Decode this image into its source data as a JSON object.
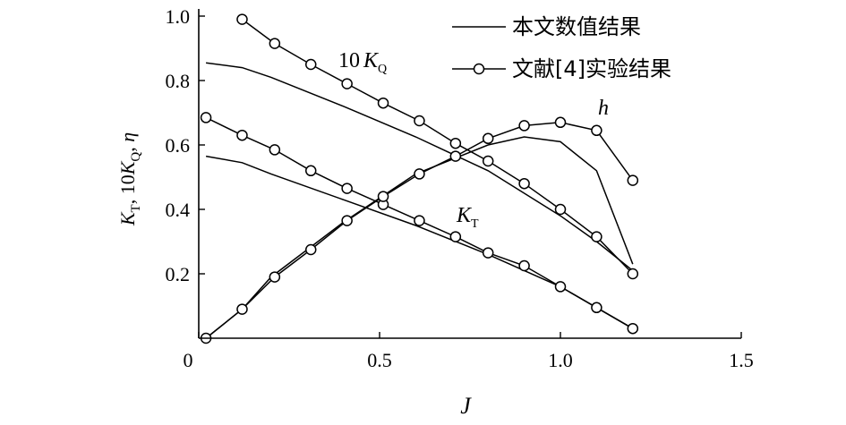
{
  "chart_data": {
    "type": "line",
    "xlabel": "J",
    "ylabel": "K_T, 10K_Q, η",
    "xlim": [
      0,
      1.5
    ],
    "ylim": [
      0,
      1.0
    ],
    "x_ticks": [
      {
        "value": 0,
        "label": "0"
      },
      {
        "value": 0.5,
        "label": "0.5"
      },
      {
        "value": 1.0,
        "label": "1.0"
      },
      {
        "value": 1.5,
        "label": "1.5"
      }
    ],
    "y_ticks": [
      {
        "value": 0.2,
        "label": "0.2"
      },
      {
        "value": 0.4,
        "label": "0.4"
      },
      {
        "value": 0.6,
        "label": "0.6"
      },
      {
        "value": 0.8,
        "label": "0.8"
      },
      {
        "value": 1.0,
        "label": "1.0"
      }
    ],
    "grid": false,
    "legend_position": "top-right",
    "legend": [
      {
        "label": "本文数值结果",
        "style": "line"
      },
      {
        "label": "文献[4]实验结果",
        "style": "line-circle"
      }
    ],
    "curve_labels": {
      "kq": "10",
      "kq_var": "K",
      "kq_sub": "Q",
      "kt_var": "K",
      "kt_sub": "T",
      "eta": "h"
    },
    "series": [
      {
        "group": "10KQ",
        "style": "line",
        "x": [
          0.02,
          0.12,
          0.2,
          0.4,
          0.6,
          0.8,
          1.0,
          1.1,
          1.2
        ],
        "y": [
          0.855,
          0.84,
          0.81,
          0.72,
          0.625,
          0.52,
          0.38,
          0.3,
          0.21
        ]
      },
      {
        "group": "10KQ",
        "style": "line-circle",
        "x": [
          0.12,
          0.21,
          0.31,
          0.41,
          0.51,
          0.61,
          0.71,
          0.8,
          0.9,
          1.0,
          1.1,
          1.2
        ],
        "y": [
          0.99,
          0.915,
          0.85,
          0.79,
          0.73,
          0.675,
          0.605,
          0.55,
          0.48,
          0.4,
          0.315,
          0.2
        ]
      },
      {
        "group": "KT",
        "style": "line",
        "x": [
          0.02,
          0.12,
          0.2,
          0.4,
          0.6,
          0.8,
          1.0,
          1.2
        ],
        "y": [
          0.565,
          0.545,
          0.51,
          0.43,
          0.35,
          0.26,
          0.16,
          0.03
        ]
      },
      {
        "group": "KT",
        "style": "line-circle",
        "x": [
          0.02,
          0.12,
          0.21,
          0.31,
          0.41,
          0.51,
          0.61,
          0.71,
          0.8,
          0.9,
          1.0,
          1.1,
          1.2
        ],
        "y": [
          0.685,
          0.63,
          0.585,
          0.52,
          0.465,
          0.415,
          0.365,
          0.315,
          0.265,
          0.225,
          0.16,
          0.095,
          0.03
        ]
      },
      {
        "group": "eta",
        "style": "line",
        "x": [
          0.02,
          0.12,
          0.2,
          0.4,
          0.6,
          0.8,
          0.9,
          1.0,
          1.1,
          1.2
        ],
        "y": [
          0.0,
          0.09,
          0.19,
          0.36,
          0.51,
          0.6,
          0.625,
          0.61,
          0.52,
          0.23
        ]
      },
      {
        "group": "eta",
        "style": "line-circle",
        "x": [
          0.02,
          0.12,
          0.21,
          0.31,
          0.41,
          0.51,
          0.61,
          0.71,
          0.8,
          0.9,
          1.0,
          1.1,
          1.2
        ],
        "y": [
          0.0,
          0.09,
          0.19,
          0.275,
          0.365,
          0.44,
          0.51,
          0.565,
          0.62,
          0.66,
          0.67,
          0.645,
          0.49
        ]
      }
    ]
  }
}
